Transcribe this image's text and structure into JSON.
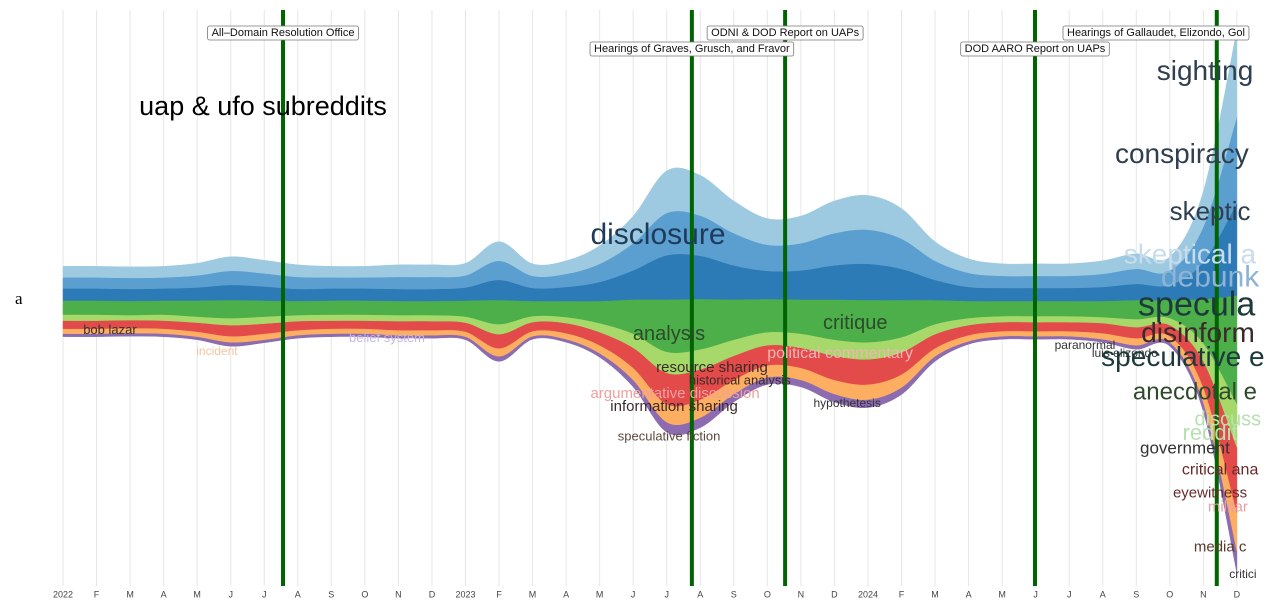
{
  "chart_data": {
    "type": "streamgraph",
    "title": "uap & ufo subreddits",
    "panel_label": "a",
    "categories": [
      "2022",
      "F",
      "M",
      "A",
      "M",
      "J",
      "J",
      "A",
      "S",
      "O",
      "N",
      "D",
      "2023",
      "F",
      "M",
      "A",
      "M",
      "J",
      "J",
      "A",
      "S",
      "O",
      "N",
      "D",
      "2024",
      "F",
      "M",
      "A",
      "M",
      "J",
      "J",
      "A",
      "S",
      "O",
      "N",
      "D"
    ],
    "ylim": [
      -300,
      300
    ],
    "grid": true,
    "series": [
      {
        "color": "#8c6bb1",
        "values": [
          3,
          3,
          3,
          3,
          3,
          4,
          3,
          3,
          3,
          3,
          3,
          3,
          3,
          5,
          3,
          3,
          4,
          7,
          10,
          10,
          8,
          7,
          7,
          8,
          8,
          7,
          5,
          3,
          3,
          3,
          3,
          3,
          4,
          4,
          9,
          22
        ]
      },
      {
        "color": "#fdae61",
        "values": [
          5,
          5,
          5,
          5,
          5,
          6,
          6,
          5,
          5,
          5,
          5,
          5,
          5,
          8,
          5,
          6,
          8,
          12,
          18,
          18,
          14,
          12,
          12,
          14,
          15,
          13,
          8,
          6,
          5,
          5,
          5,
          6,
          7,
          6,
          15,
          38
        ]
      },
      {
        "color": "#e34a4a",
        "values": [
          8,
          8,
          8,
          8,
          9,
          11,
          10,
          9,
          8,
          8,
          9,
          9,
          9,
          14,
          9,
          10,
          13,
          20,
          31,
          30,
          24,
          20,
          20,
          24,
          25,
          22,
          14,
          10,
          9,
          9,
          9,
          10,
          11,
          11,
          26,
          65
        ]
      },
      {
        "color": "#a6d96a",
        "values": [
          6,
          6,
          5,
          6,
          6,
          7,
          7,
          6,
          6,
          6,
          6,
          6,
          6,
          10,
          6,
          6,
          9,
          14,
          21,
          20,
          16,
          13,
          14,
          16,
          17,
          15,
          10,
          7,
          6,
          6,
          6,
          6,
          8,
          7,
          18,
          43
        ]
      },
      {
        "color": "#4daf4a",
        "values": [
          14,
          14,
          14,
          14,
          16,
          18,
          16,
          14,
          14,
          14,
          14,
          14,
          16,
          24,
          15,
          16,
          22,
          34,
          52,
          50,
          40,
          33,
          34,
          40,
          42,
          37,
          24,
          17,
          15,
          15,
          15,
          16,
          19,
          18,
          44,
          108
        ]
      },
      {
        "color": "#2c7bb6",
        "values": [
          12,
          12,
          12,
          12,
          13,
          15,
          14,
          12,
          12,
          12,
          12,
          12,
          13,
          20,
          13,
          14,
          19,
          29,
          44,
          43,
          34,
          28,
          29,
          34,
          36,
          31,
          20,
          14,
          13,
          13,
          13,
          14,
          16,
          15,
          37,
          92
        ]
      },
      {
        "color": "#5a9fd0",
        "values": [
          11,
          11,
          11,
          11,
          12,
          14,
          13,
          12,
          11,
          11,
          12,
          12,
          12,
          19,
          12,
          13,
          18,
          27,
          42,
          40,
          32,
          26,
          27,
          32,
          34,
          30,
          19,
          14,
          12,
          12,
          12,
          13,
          15,
          14,
          35,
          86
        ]
      },
      {
        "color": "#9ecae1",
        "values": [
          11,
          11,
          11,
          11,
          12,
          14,
          13,
          12,
          11,
          11,
          12,
          12,
          12,
          19,
          12,
          13,
          18,
          27,
          42,
          40,
          32,
          26,
          27,
          32,
          34,
          30,
          19,
          14,
          12,
          12,
          12,
          13,
          15,
          14,
          35,
          86
        ]
      }
    ],
    "events": [
      {
        "label": "All–Domain Resolution Office",
        "x": 6.56
      },
      {
        "label": "Hearings of Graves, Grusch, and Fravor",
        "x": 18.75
      },
      {
        "label": "ODNI & DOD Report on UAPs",
        "x": 21.53
      },
      {
        "label": "DOD AARO Report on UAPs",
        "x": 28.98
      },
      {
        "label": "Hearings of Gallaudet, Elizondo, Gol",
        "x": 34.4
      }
    ],
    "event_color": "#006400",
    "annotations": [
      {
        "text": "disclosure",
        "x": 17.74,
        "y": 65
      },
      {
        "text": "analysis",
        "x": 18.07,
        "y": -33
      },
      {
        "text": "critique",
        "x": 23.62,
        "y": -22
      },
      {
        "text": "political commentary",
        "x": 23.17,
        "y": -52
      },
      {
        "text": "bob lazar",
        "x": 1.4,
        "y": -29
      },
      {
        "text": "incident",
        "x": 4.59,
        "y": -50
      },
      {
        "text": "belief system",
        "x": 9.66,
        "y": -37
      },
      {
        "text": "resource sharing",
        "x": 19.35,
        "y": -66
      },
      {
        "text": "historical analysis",
        "x": 20.18,
        "y": -79
      },
      {
        "text": "argumentative discussion",
        "x": 18.25,
        "y": -92
      },
      {
        "text": "information sharing",
        "x": 18.22,
        "y": -105
      },
      {
        "text": "speculative fiction",
        "x": 18.07,
        "y": -135
      },
      {
        "text": "hypothetesis",
        "x": 23.38,
        "y": -102
      },
      {
        "text": "paranormal",
        "x": 30.47,
        "y": -44
      },
      {
        "text": "luis elizondo",
        "x": 31.66,
        "y": -52
      },
      {
        "text": "sighting",
        "x": 34.05,
        "y": 228
      },
      {
        "text": "conspiracy",
        "x": 33.36,
        "y": 145
      },
      {
        "text": "skeptic",
        "x": 34.2,
        "y": 88
      },
      {
        "text": "skeptical a",
        "x": 33.6,
        "y": 45
      },
      {
        "text": "debunk",
        "x": 34.2,
        "y": 23
      },
      {
        "text": "specula",
        "x": 33.8,
        "y": -5
      },
      {
        "text": "disinform",
        "x": 33.84,
        "y": -33
      },
      {
        "text": "speculative e",
        "x": 33.39,
        "y": -57
      },
      {
        "text": "anecdotal e",
        "x": 33.75,
        "y": -91
      },
      {
        "text": "discuss",
        "x": 34.73,
        "y": -118
      },
      {
        "text": "reddit",
        "x": 34.2,
        "y": -132
      },
      {
        "text": "government",
        "x": 33.45,
        "y": -147
      },
      {
        "text": "critical ana",
        "x": 34.5,
        "y": -168
      },
      {
        "text": "eyewitness",
        "x": 34.2,
        "y": -191
      },
      {
        "text": "militar",
        "x": 34.73,
        "y": -205
      },
      {
        "text": "media c",
        "x": 34.5,
        "y": -245
      },
      {
        "text": "critici",
        "x": 35.18,
        "y": -272
      }
    ]
  }
}
